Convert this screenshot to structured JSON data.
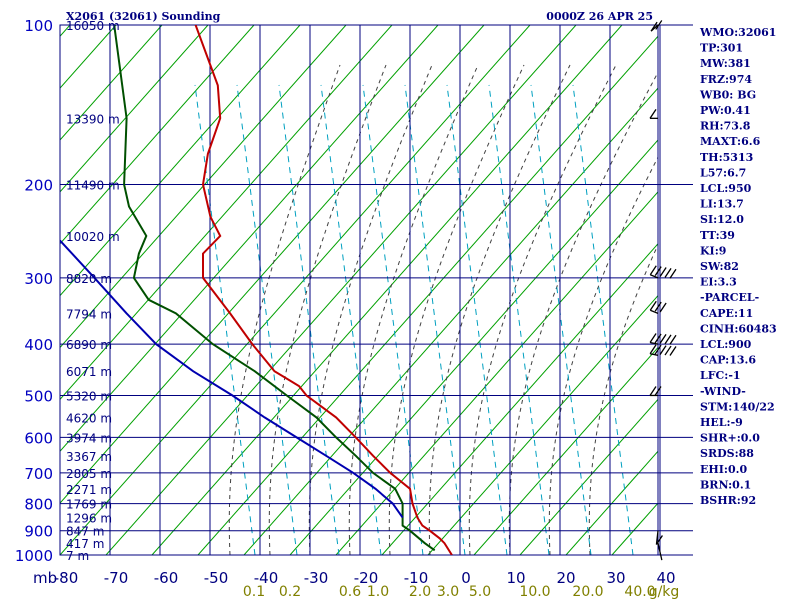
{
  "header": {
    "station": "X2061 (32061) Sounding",
    "time": "0000Z 26 APR 25"
  },
  "indices": [
    "WMO:32061",
    "TP:301",
    "MW:381",
    "FRZ:974",
    "WB0: BG",
    "PW:0.41",
    "RH:73.8",
    "MAXT:6.6",
    "TH:5313",
    "L57:6.7",
    "LCL:950",
    "LI:13.7",
    "SI:12.0",
    "TT:39",
    "KI:9",
    "SW:82",
    "EI:3.3",
    "-PARCEL-",
    "CAPE:11",
    "CINH:60483",
    "LCL:900",
    "CAP:13.6",
    "LFC:-1",
    "-WIND-",
    "STM:140/22",
    "HEL:-9",
    "SHR+:0.0",
    "SRDS:88",
    "EHI:0.0",
    "BRN:0.1",
    "BSHR:92"
  ],
  "chart_data": {
    "type": "line",
    "title": "X2061 (32061) Sounding",
    "subtitle": "0000Z 26 APR 25",
    "x_axis": {
      "unit_label": "mb",
      "tick_labels": [
        "-80",
        "-70",
        "-60",
        "-50",
        "-40",
        "-30",
        "-20",
        "-10",
        "0",
        "10",
        "20",
        "30",
        "40"
      ],
      "range": [
        -80,
        40
      ]
    },
    "y_axis": {
      "scale": "log-pressure",
      "tick_labels": [
        "100",
        "200",
        "300",
        "400",
        "500",
        "600",
        "700",
        "800",
        "900",
        "1000"
      ],
      "range": [
        100,
        1000
      ]
    },
    "pressure_levels": [
      100,
      150,
      200,
      250,
      300,
      350,
      400,
      450,
      500,
      550,
      600,
      650,
      700,
      750,
      800,
      850,
      900,
      950,
      1000
    ],
    "height_labels": [
      {
        "p": 100,
        "label": "16050 m"
      },
      {
        "p": 150,
        "label": "13390 m"
      },
      {
        "p": 200,
        "label": "11490 m"
      },
      {
        "p": 250,
        "label": "10020 m"
      },
      {
        "p": 300,
        "label": "8820 m"
      },
      {
        "p": 350,
        "label": "7794 m"
      },
      {
        "p": 400,
        "label": "6890 m"
      },
      {
        "p": 450,
        "label": "6071 m"
      },
      {
        "p": 500,
        "label": "5320 m"
      },
      {
        "p": 550,
        "label": "4620 m"
      },
      {
        "p": 600,
        "label": "3974 m"
      },
      {
        "p": 650,
        "label": "3367 m"
      },
      {
        "p": 700,
        "label": "2805 m"
      },
      {
        "p": 750,
        "label": "2271 m"
      },
      {
        "p": 800,
        "label": "1769 m"
      },
      {
        "p": 850,
        "label": "1296 m"
      },
      {
        "p": 900,
        "label": "847 m"
      },
      {
        "p": 950,
        "label": "417 m"
      },
      {
        "p": 1000,
        "label": "7 m"
      }
    ],
    "mixing_ratio_labels": [
      "0.1",
      "0.2",
      "0.6",
      "1.0",
      "2.0",
      "3.0",
      "5.0",
      "10.0",
      "20.0",
      "40.0",
      "g/kg"
    ],
    "mixing_ratio_values": [
      0.1,
      0.2,
      0.6,
      1.0,
      2.0,
      3.0,
      5.0,
      10.0,
      20.0,
      40.0
    ],
    "series": [
      {
        "color": "#c00000",
        "points": [
          [
            100,
            -52.5
          ],
          [
            130,
            -48
          ],
          [
            150,
            -47.5
          ],
          [
            175,
            -50
          ],
          [
            200,
            -51
          ],
          [
            230,
            -49.5
          ],
          [
            250,
            -47.5
          ],
          [
            270,
            -51
          ],
          [
            300,
            -51
          ],
          [
            350,
            -45.5
          ],
          [
            400,
            -41
          ],
          [
            450,
            -36.5
          ],
          [
            480,
            -31.5
          ],
          [
            500,
            -30
          ],
          [
            550,
            -24
          ],
          [
            600,
            -20
          ],
          [
            650,
            -16.5
          ],
          [
            700,
            -13
          ],
          [
            750,
            -9
          ],
          [
            800,
            -8.5
          ],
          [
            850,
            -7.5
          ],
          [
            880,
            -6.5
          ],
          [
            900,
            -5
          ],
          [
            930,
            -3
          ],
          [
            950,
            -2
          ],
          [
            1000,
            -0.5
          ]
        ]
      },
      {
        "color": "#005000",
        "points": [
          [
            100,
            -69
          ],
          [
            150,
            -66.5
          ],
          [
            200,
            -67
          ],
          [
            220,
            -66
          ],
          [
            250,
            -62.5
          ],
          [
            270,
            -64
          ],
          [
            300,
            -65
          ],
          [
            330,
            -62
          ],
          [
            350,
            -56.5
          ],
          [
            400,
            -49
          ],
          [
            450,
            -40.5
          ],
          [
            500,
            -34
          ],
          [
            550,
            -28
          ],
          [
            600,
            -24
          ],
          [
            650,
            -20
          ],
          [
            700,
            -16.5
          ],
          [
            750,
            -12
          ],
          [
            800,
            -10.5
          ],
          [
            850,
            -10.5
          ],
          [
            880,
            -10.5
          ],
          [
            900,
            -9
          ],
          [
            950,
            -6
          ],
          [
            980,
            -4
          ]
        ]
      },
      {
        "color": "#0000b0",
        "points": [
          [
            255,
            -80
          ],
          [
            300,
            -73
          ],
          [
            350,
            -66.5
          ],
          [
            400,
            -60.5
          ],
          [
            450,
            -53
          ],
          [
            500,
            -45
          ],
          [
            550,
            -38.5
          ],
          [
            600,
            -32
          ],
          [
            650,
            -26
          ],
          [
            700,
            -20.5
          ],
          [
            750,
            -16
          ],
          [
            800,
            -12.5
          ],
          [
            850,
            -10.5
          ]
        ]
      }
    ],
    "wind_barbs": [
      {
        "p": 100,
        "dir": 250,
        "kt": 20
      },
      {
        "p": 150,
        "dir": 270,
        "kt": 15
      },
      {
        "p": 300,
        "dir": 280,
        "kt": 50
      },
      {
        "p": 350,
        "dir": 280,
        "kt": 30
      },
      {
        "p": 400,
        "dir": 275,
        "kt": 50
      },
      {
        "p": 420,
        "dir": 275,
        "kt": 55
      },
      {
        "p": 500,
        "dir": 270,
        "kt": 25
      },
      {
        "p": 900,
        "dir": 220,
        "kt": 10
      },
      {
        "p": 950,
        "dir": 200,
        "kt": 5
      }
    ],
    "colors": {
      "grid": "#00007f",
      "dry_adiabat": "#00a000",
      "moist_adiabat": "#404040",
      "mixing_ratio": "#00a0c0"
    },
    "legend": "none",
    "grid": true
  }
}
